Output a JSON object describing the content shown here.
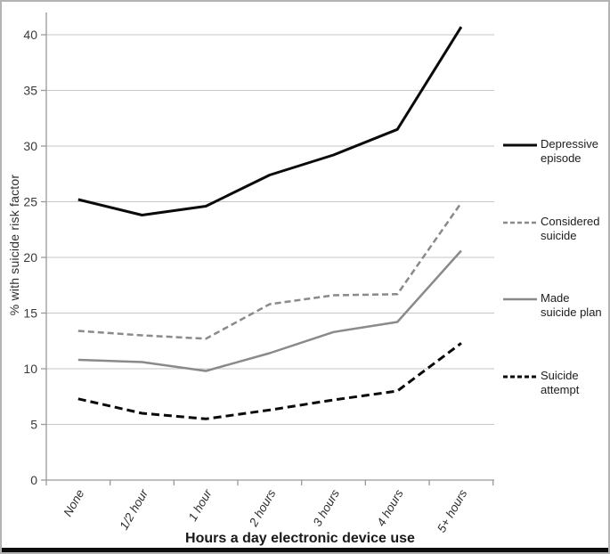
{
  "figure": {
    "kind": "line chart figure",
    "x_axis_title": "Hours a day electronic device use",
    "y_axis_title": "% with suicide risk factor"
  },
  "chart_data": {
    "type": "line",
    "title": "",
    "xlabel": "Hours a day electronic device use",
    "ylabel": "% with suicide risk factor",
    "categories": [
      "None",
      "1/2 hour",
      "1 hour",
      "2 hours",
      "3 hours",
      "4 hours",
      "5+ hours"
    ],
    "yticks": [
      0,
      5,
      10,
      15,
      20,
      25,
      30,
      35,
      40
    ],
    "ylim": [
      0,
      42
    ],
    "grid": true,
    "legend_position": "right",
    "series": [
      {
        "name": "Depressive episode",
        "label_lines": [
          "Depressive",
          "episode"
        ],
        "values": [
          25.2,
          23.8,
          24.6,
          27.4,
          29.2,
          31.5,
          40.7
        ],
        "color": "#0a0a0a",
        "style": "solid",
        "stroke_width": 3
      },
      {
        "name": "Considered suicide",
        "label_lines": [
          "Considered",
          "suicide"
        ],
        "values": [
          13.4,
          13.0,
          12.7,
          15.8,
          16.6,
          16.7,
          24.9
        ],
        "color": "#8a8a8a",
        "style": "dashed",
        "stroke_width": 2.5
      },
      {
        "name": "Made suicide plan",
        "label_lines": [
          "Made",
          "suicide plan"
        ],
        "values": [
          10.8,
          10.6,
          9.8,
          11.4,
          13.3,
          14.2,
          20.6
        ],
        "color": "#8a8a8a",
        "style": "solid",
        "stroke_width": 2.5
      },
      {
        "name": "Suicide attempt",
        "label_lines": [
          "Suicide",
          "attempt"
        ],
        "values": [
          7.3,
          6.0,
          5.5,
          6.3,
          7.2,
          8.0,
          12.3
        ],
        "color": "#0a0a0a",
        "style": "dashed",
        "stroke_width": 3
      }
    ]
  },
  "colors": {
    "grid": "#c6c6c6",
    "axis": "#999999",
    "tick_label": "#3a3a3a",
    "bottom_bar": "#0c0c0c"
  }
}
